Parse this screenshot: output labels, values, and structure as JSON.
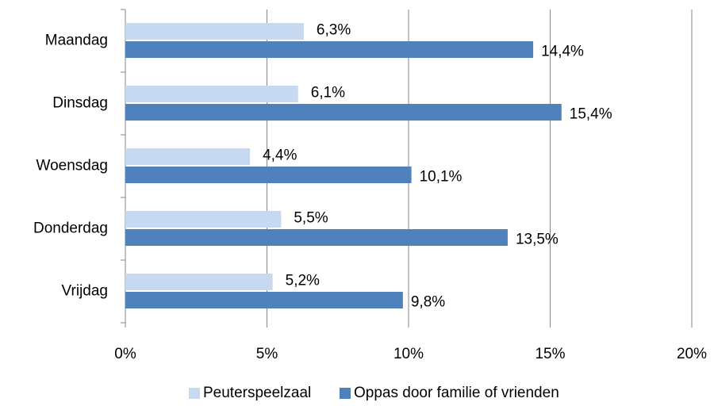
{
  "chart_data": {
    "type": "hbar",
    "categories": [
      "Maandag",
      "Dinsdag",
      "Woensdag",
      "Donderdag",
      "Vrijdag"
    ],
    "series": [
      {
        "name": "Peuterspeelzaal",
        "color": "#c6d9f1",
        "values": [
          6.3,
          6.1,
          4.4,
          5.5,
          5.2
        ],
        "value_labels": [
          "6,3%",
          "6,1%",
          "4,4%",
          "5,5%",
          "5,2%"
        ]
      },
      {
        "name": "Oppas door familie of vrienden",
        "color": "#4f81bd",
        "values": [
          14.4,
          15.4,
          10.1,
          13.5,
          9.8
        ],
        "value_labels": [
          "14,4%",
          "15,4%",
          "10,1%",
          "13,5%",
          "9,8%"
        ]
      }
    ],
    "xlim": [
      0,
      20
    ],
    "xticks": [
      {
        "value": 0,
        "label": "0%"
      },
      {
        "value": 5,
        "label": "5%"
      },
      {
        "value": 10,
        "label": "10%"
      },
      {
        "value": 15,
        "label": "15%"
      },
      {
        "value": 20,
        "label": "20%"
      }
    ],
    "grid": true,
    "legend": "bottom"
  }
}
